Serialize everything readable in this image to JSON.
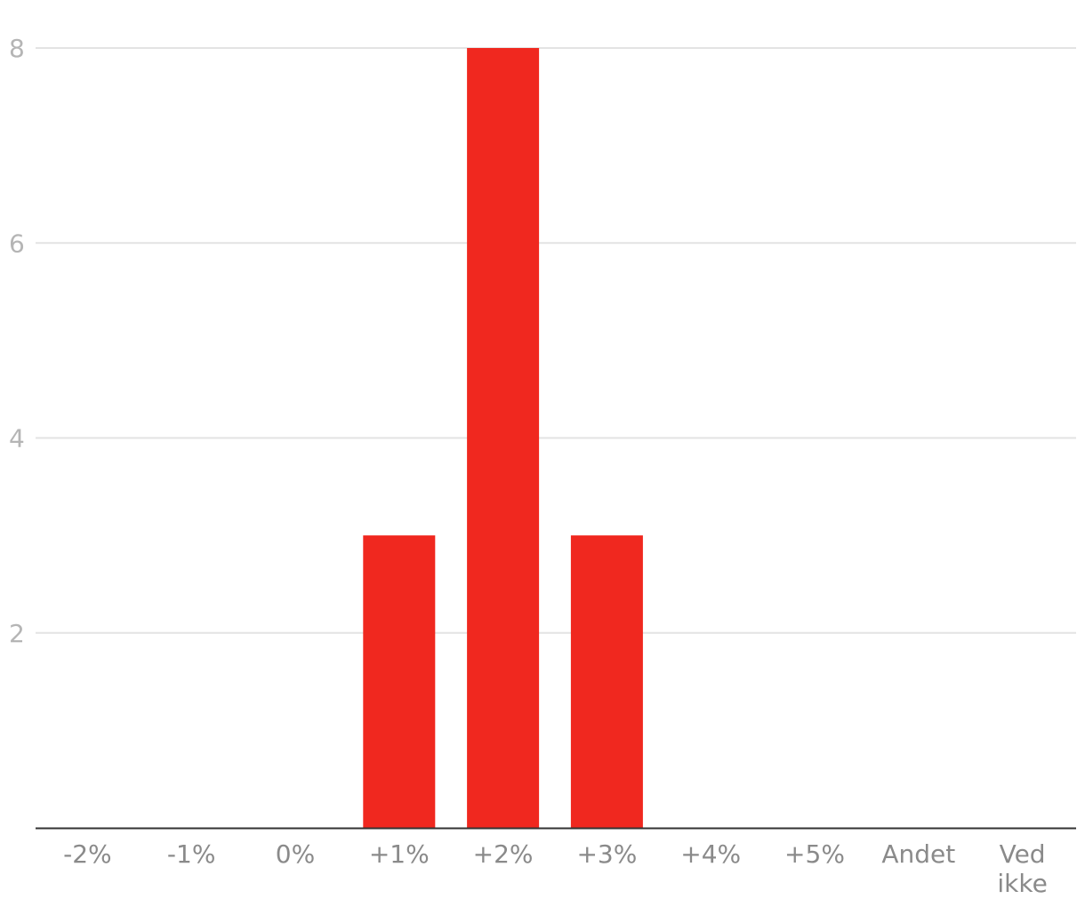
{
  "chart_data": {
    "type": "bar",
    "title": "",
    "xlabel": "",
    "ylabel": "",
    "categories": [
      "-2%",
      "-1%",
      "0%",
      "+1%",
      "+2%",
      "+3%",
      "+4%",
      "+5%",
      "Andet",
      "Ved ikke"
    ],
    "values": [
      0,
      0,
      0,
      3,
      8,
      3,
      0,
      0,
      0,
      0
    ],
    "ylim": [
      0,
      8
    ],
    "yticks": [
      2,
      4,
      6,
      8
    ],
    "grid": true,
    "legend": "none",
    "bar_color": "#f0281f"
  }
}
